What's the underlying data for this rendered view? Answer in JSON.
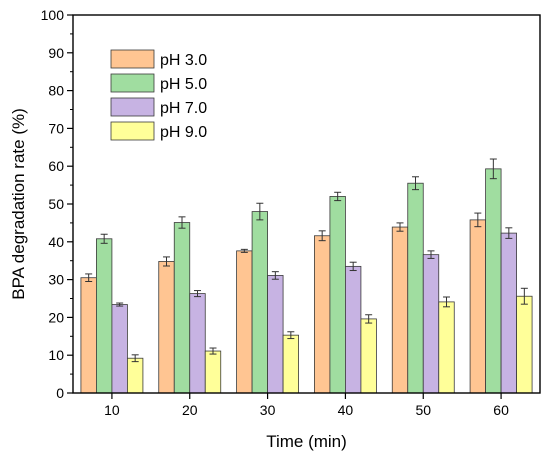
{
  "chart_data": {
    "type": "bar",
    "title": "",
    "xlabel": "Time (min)",
    "ylabel": "BPA degradation rate (%)",
    "ylim": [
      0,
      100
    ],
    "yticks": [
      0,
      10,
      20,
      30,
      40,
      50,
      60,
      70,
      80,
      90,
      100
    ],
    "categories": [
      "10",
      "20",
      "30",
      "40",
      "50",
      "60"
    ],
    "grid": false,
    "legend_position": "top-left",
    "error_bars": true,
    "series": [
      {
        "name": "pH 3.0",
        "color": "#FFC592",
        "values": [
          30.5,
          34.8,
          37.6,
          41.6,
          43.9,
          45.8
        ],
        "errors": [
          1.0,
          1.2,
          0.4,
          1.3,
          1.1,
          1.8
        ]
      },
      {
        "name": "pH 5.0",
        "color": "#A0DDA0",
        "values": [
          40.8,
          45.1,
          48.0,
          52.0,
          55.5,
          59.3
        ],
        "errors": [
          1.2,
          1.5,
          2.2,
          1.1,
          1.7,
          2.6
        ]
      },
      {
        "name": "pH 7.0",
        "color": "#C7B3E3",
        "values": [
          23.4,
          26.3,
          31.1,
          33.5,
          36.6,
          42.3
        ],
        "errors": [
          0.4,
          0.8,
          1.0,
          1.1,
          1.0,
          1.4
        ]
      },
      {
        "name": "pH 9.0",
        "color": "#FFFF99",
        "values": [
          9.2,
          11.1,
          15.3,
          19.6,
          24.1,
          25.6
        ],
        "errors": [
          0.9,
          0.8,
          0.9,
          1.1,
          1.3,
          2.1
        ]
      }
    ]
  }
}
